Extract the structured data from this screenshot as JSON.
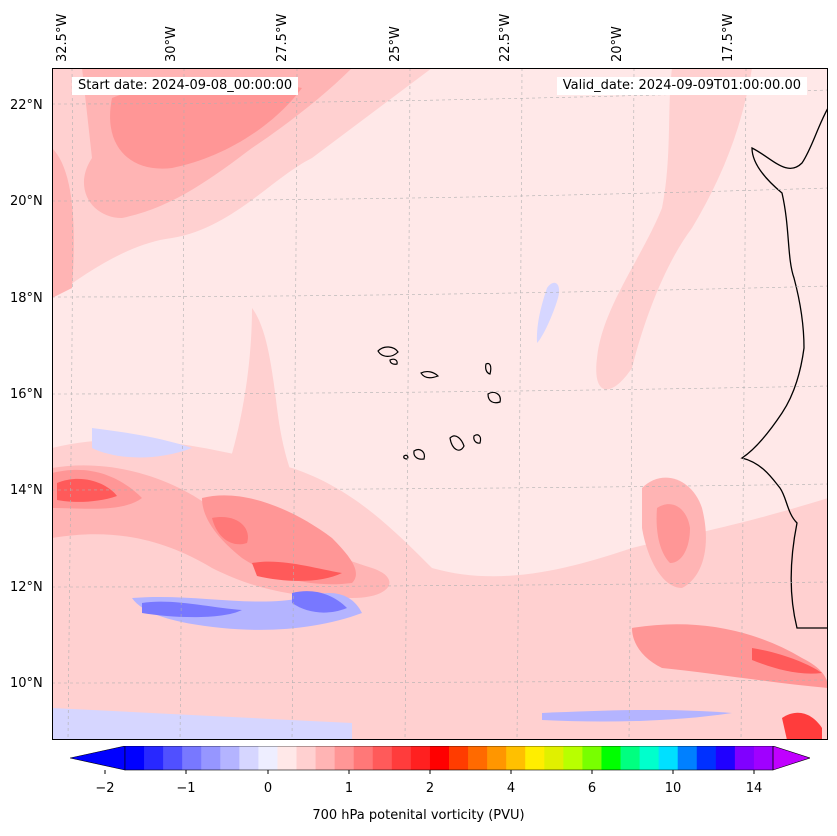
{
  "map": {
    "start_date": "Start date: 2024-09-08_00:00:00",
    "valid_date": "Valid_date: 2024-09-09T01:00:00.00",
    "longitude_labels": [
      "32.5°W",
      "30°W",
      "27.5°W",
      "25°W",
      "22.5°W",
      "20°W",
      "17.5°W"
    ],
    "latitude_labels": [
      "22°N",
      "20°N",
      "18°N",
      "16°N",
      "14°N",
      "12°N",
      "10°N"
    ]
  },
  "colorbar": {
    "label": "700 hPa potenital vorticity (PVU)",
    "tick_labels": [
      "−2",
      "−1",
      "0",
      "1",
      "2",
      "4",
      "6",
      "10",
      "14"
    ],
    "colors": [
      "#0000ff",
      "#2828ff",
      "#5050ff",
      "#7878ff",
      "#9696ff",
      "#b4b4ff",
      "#d6d6ff",
      "#eeeeff",
      "#ffe8e8",
      "#ffd0d0",
      "#ffb4b4",
      "#ff9696",
      "#ff7878",
      "#ff5a5a",
      "#ff3c3c",
      "#ff2020",
      "#ff0000",
      "#ff3c00",
      "#ff6a00",
      "#ff9600",
      "#ffc000",
      "#ffee00",
      "#e0f000",
      "#b8ff00",
      "#78ff00",
      "#00ff00",
      "#00ff80",
      "#00ffcc",
      "#00e0ff",
      "#0080ff",
      "#0030ff",
      "#2000ff",
      "#8000ff",
      "#a000ff"
    ],
    "extend_low_color": "#0000ff",
    "extend_high_color": "#c000ff"
  }
}
